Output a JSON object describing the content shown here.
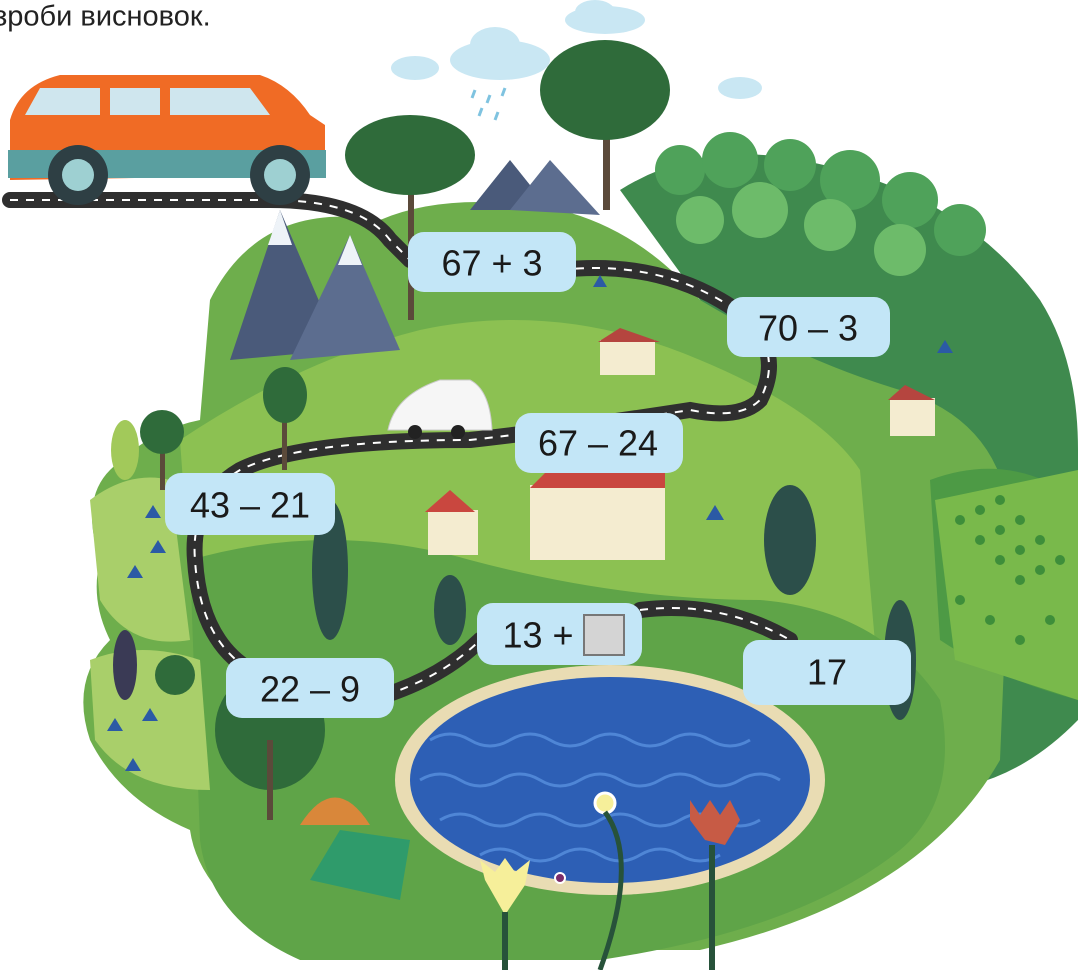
{
  "header": {
    "text": "зроби висновок."
  },
  "labels": [
    "67 + 3",
    "70 – 3",
    "67 – 24",
    "43 – 21",
    "13 +",
    "22 – 9",
    "17"
  ]
}
